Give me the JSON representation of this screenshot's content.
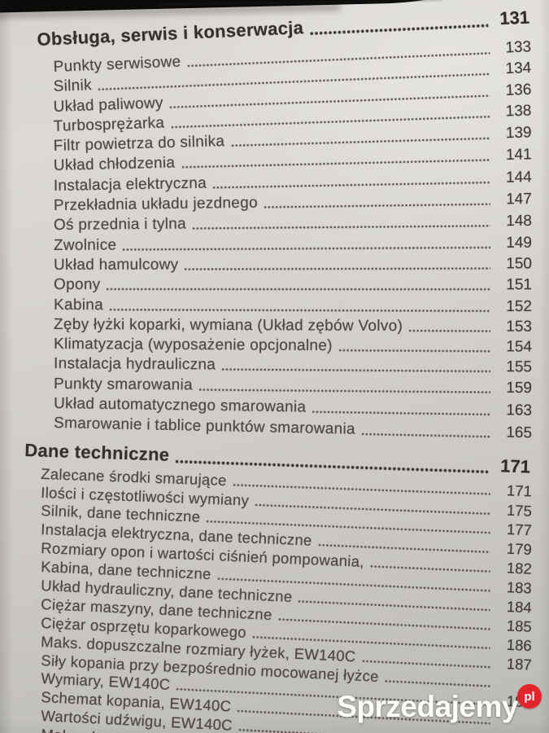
{
  "photo": {
    "paper_color": "#d3d0cb",
    "ink_color": "#45423e",
    "page_edge_color": "#0b0b0a"
  },
  "watermark": {
    "text": "Sprzedajemy",
    "badge_text": "pl",
    "badge_color": "#e3242b",
    "text_color": "#ffffff"
  },
  "toc": {
    "sections": [
      {
        "heading": {
          "label": "Obsługa, serwis i konserwacja",
          "page": "131"
        },
        "items": [
          {
            "label": "Punkty serwisowe",
            "page": "133"
          },
          {
            "label": "Silnik",
            "page": "134"
          },
          {
            "label": "Układ paliwowy",
            "page": "136"
          },
          {
            "label": "Turbosprężarka",
            "page": "138"
          },
          {
            "label": "Filtr powietrza do silnika",
            "page": "139"
          },
          {
            "label": "Układ chłodzenia",
            "page": "141"
          },
          {
            "label": "Instalacja elektryczna",
            "page": "144"
          },
          {
            "label": "Przekładnia układu jezdnego",
            "page": "147"
          },
          {
            "label": "Oś przednia i tylna",
            "page": "148"
          },
          {
            "label": "Zwolnice",
            "page": "149"
          },
          {
            "label": "Układ hamulcowy",
            "page": "150"
          },
          {
            "label": "Opony",
            "page": "151"
          },
          {
            "label": "Kabina",
            "page": "152"
          },
          {
            "label": "Zęby łyżki koparki, wymiana (Układ zębów Volvo)",
            "page": "153"
          },
          {
            "label": "Klimatyzacja (wyposażenie opcjonalne)",
            "page": "154"
          },
          {
            "label": "Instalacja hydrauliczna",
            "page": "155"
          },
          {
            "label": "Punkty smarowania",
            "page": "159"
          },
          {
            "label": "Układ automatycznego smarowania",
            "page": "163"
          },
          {
            "label": "Smarowanie i tablice punktów smarowania",
            "page": "165"
          }
        ]
      },
      {
        "heading": {
          "label": "Dane techniczne",
          "page": "171"
        },
        "items": [
          {
            "label": "Zalecane środki smarujące",
            "page": "171"
          },
          {
            "label": "Ilości i częstotliwości wymiany",
            "page": "175"
          },
          {
            "label": "Silnik, dane techniczne",
            "page": "177"
          },
          {
            "label": "Instalacja elektryczna, dane techniczne",
            "page": "179"
          },
          {
            "label": "Rozmiary opon i wartości ciśnień pompowania,",
            "page": "182"
          },
          {
            "label": "Kabina, dane techniczne",
            "page": "183"
          },
          {
            "label": "Układ hydrauliczny, dane techniczne",
            "page": "184"
          },
          {
            "label": "Ciężar maszyny, dane techniczne",
            "page": "185"
          },
          {
            "label": "Ciężar osprzętu koparkowego",
            "page": "186"
          },
          {
            "label": "Maks. dopuszczalne rozmiary łyżek, EW140C",
            "page": "187"
          },
          {
            "label": "Siły kopania przy bezpośrednio mocowanej łyżce",
            "page": ""
          },
          {
            "label": "Wymiary, EW140C",
            "page": "189"
          },
          {
            "label": "Schemat kopania, EW140C",
            "page": ""
          },
          {
            "label": "Wartości udźwigu, EW140C",
            "page": ""
          },
          {
            "label": "Maks. dopuszczalne",
            "page": ""
          }
        ]
      }
    ]
  }
}
